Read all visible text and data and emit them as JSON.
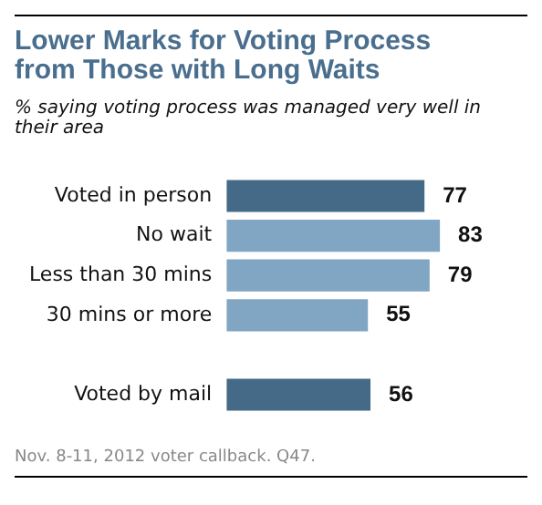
{
  "chart_data": {
    "type": "bar",
    "orientation": "horizontal",
    "title": "Lower Marks for Voting Process from Those with Long Waits",
    "subtitle": "% saying voting process was managed very well in their area",
    "categories": [
      "Voted in person",
      "No wait",
      "Less than 30 mins",
      "30 mins or more",
      null,
      "Voted by mail"
    ],
    "values": [
      77,
      83,
      79,
      55,
      null,
      56
    ],
    "colors": [
      "#456a87",
      "#81a6c3",
      "#81a6c3",
      "#81a6c3",
      "#81a6c3",
      "#456a87"
    ],
    "tick_labels": "y",
    "grid": false,
    "legend": false,
    "data_labels": true,
    "annotations": [
      "Nov. 8-11, 2012 voter callback. Q47."
    ]
  }
}
